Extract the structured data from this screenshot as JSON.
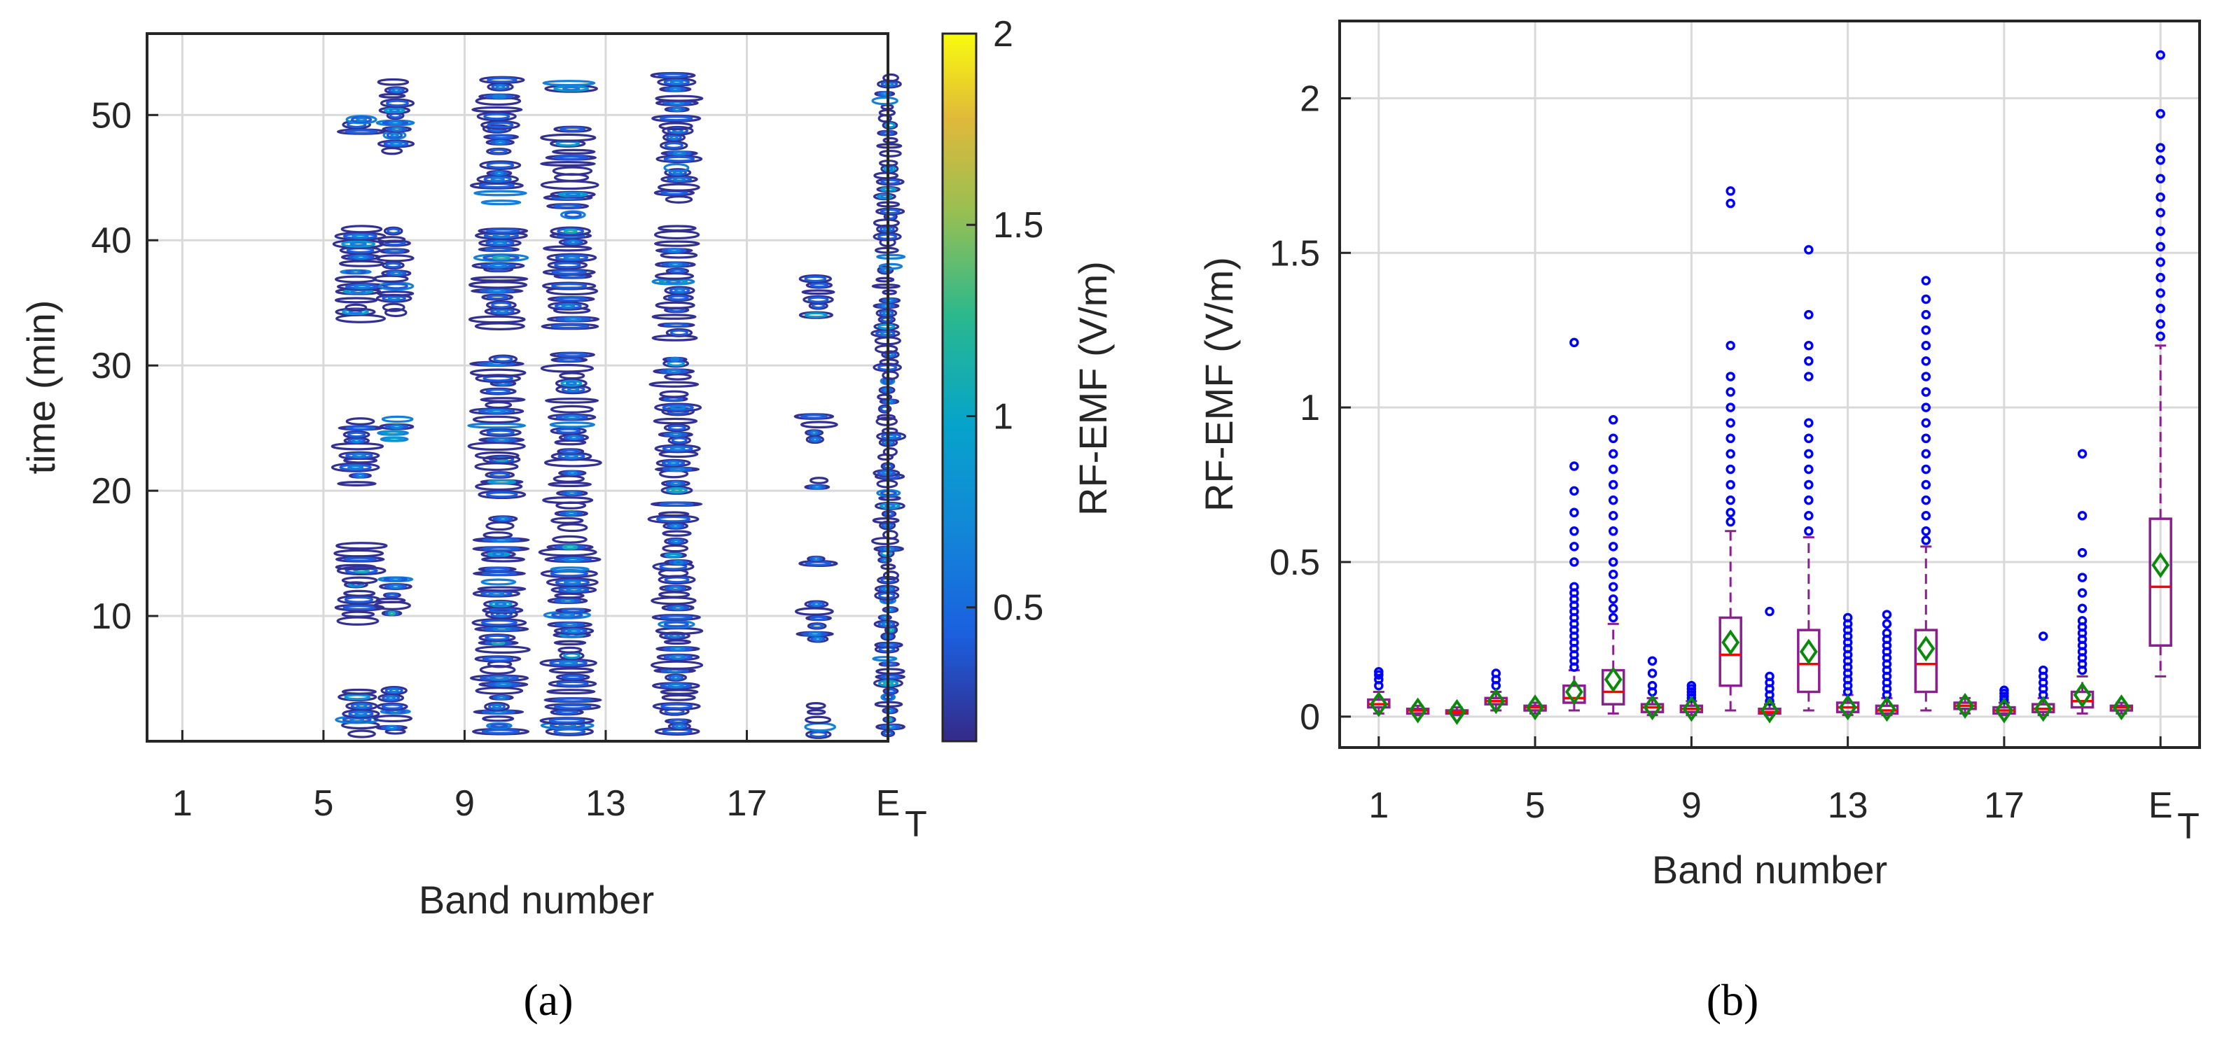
{
  "chart_data": [
    {
      "panel": "(a)",
      "type": "heatmap",
      "title": "",
      "xlabel": "Band number",
      "ylabel": "time (min)",
      "colorbar_label": "RF-EMF (V/m)",
      "xlim": [
        0,
        21
      ],
      "ylim": [
        0,
        56.5
      ],
      "clim": [
        0.15,
        2
      ],
      "x_ticks": [
        1,
        5,
        9,
        13,
        17,
        21
      ],
      "x_tick_labels": [
        "1",
        "5",
        "9",
        "13",
        "17",
        "E"
      ],
      "x_tick_subscript": "T",
      "y_ticks": [
        10,
        20,
        30,
        40,
        50
      ],
      "y_tick_labels": [
        "10",
        "20",
        "30",
        "40",
        "50"
      ],
      "colorbar_ticks": [
        0.5,
        1,
        1.5,
        2
      ],
      "colorbar_tick_labels": [
        "0.5",
        "1",
        "1.5",
        "2"
      ],
      "grid": true,
      "active_bands": [
        {
          "band": 6,
          "spread": 0.8,
          "segments": [
            [
              0.5,
              4
            ],
            [
              9.5,
              16
            ],
            [
              20.5,
              26
            ],
            [
              33.5,
              41
            ],
            [
              48.5,
              50
            ]
          ]
        },
        {
          "band": 7,
          "spread": 0.6,
          "segments": [
            [
              0.5,
              4
            ],
            [
              10,
              13
            ],
            [
              24,
              26
            ],
            [
              34,
              41
            ],
            [
              47,
              53
            ]
          ]
        },
        {
          "band": 10,
          "spread": 0.9,
          "segments": [
            [
              0.5,
              18
            ],
            [
              19.5,
              31
            ],
            [
              33,
              41
            ],
            [
              43,
              46
            ],
            [
              47,
              53
            ]
          ]
        },
        {
          "band": 12,
          "spread": 0.9,
          "segments": [
            [
              0.5,
              16
            ],
            [
              17,
              27
            ],
            [
              28,
              31
            ],
            [
              33,
              41
            ],
            [
              42,
              49
            ],
            [
              52,
              53
            ]
          ]
        },
        {
          "band": 15,
          "spread": 0.8,
          "segments": [
            [
              0.5,
              19
            ],
            [
              20,
              31
            ],
            [
              32,
              41
            ],
            [
              43,
              53
            ]
          ]
        },
        {
          "band": 19,
          "spread": 0.6,
          "segments": [
            [
              0.5,
              3
            ],
            [
              8,
              11
            ],
            [
              14,
              15
            ],
            [
              20,
              21
            ],
            [
              24,
              26
            ],
            [
              34,
              37
            ]
          ]
        },
        {
          "band": 21,
          "spread": 0.45,
          "segments": [
            [
              0.5,
              53
            ]
          ]
        }
      ]
    },
    {
      "panel": "(b)",
      "type": "box",
      "title": "",
      "xlabel": "Band number",
      "ylabel": "RF-EMF (V/m)",
      "xlim": [
        0,
        22
      ],
      "ylim": [
        -0.1,
        2.25
      ],
      "x_ticks": [
        1,
        5,
        9,
        13,
        17,
        21
      ],
      "x_tick_labels": [
        "1",
        "5",
        "9",
        "13",
        "17",
        "E"
      ],
      "x_tick_subscript": "T",
      "y_ticks": [
        0,
        0.5,
        1,
        1.5,
        2
      ],
      "y_tick_labels": [
        "0",
        "0.5",
        "1",
        "1.5",
        "2"
      ],
      "grid": true,
      "boxes": [
        {
          "band": 1,
          "q1": 0.03,
          "median": 0.04,
          "q3": 0.055,
          "wlo": 0.01,
          "whi": 0.08,
          "mean": 0.04,
          "outliers": [
            0.1,
            0.12,
            0.135,
            0.145
          ]
        },
        {
          "band": 2,
          "q1": 0.01,
          "median": 0.02,
          "q3": 0.025,
          "wlo": 0.005,
          "whi": 0.035,
          "mean": 0.02,
          "outliers": []
        },
        {
          "band": 3,
          "q1": 0.01,
          "median": 0.015,
          "q3": 0.02,
          "wlo": 0.005,
          "whi": 0.03,
          "mean": 0.015,
          "outliers": []
        },
        {
          "band": 4,
          "q1": 0.04,
          "median": 0.05,
          "q3": 0.06,
          "wlo": 0.02,
          "whi": 0.08,
          "mean": 0.05,
          "outliers": [
            0.1,
            0.12,
            0.14
          ]
        },
        {
          "band": 5,
          "q1": 0.02,
          "median": 0.03,
          "q3": 0.035,
          "wlo": 0.01,
          "whi": 0.045,
          "mean": 0.03,
          "outliers": []
        },
        {
          "band": 6,
          "q1": 0.045,
          "median": 0.06,
          "q3": 0.1,
          "wlo": 0.02,
          "whi": 0.15,
          "mean": 0.08,
          "outliers": [
            0.16,
            0.18,
            0.2,
            0.22,
            0.24,
            0.26,
            0.28,
            0.3,
            0.32,
            0.34,
            0.36,
            0.38,
            0.4,
            0.42,
            0.5,
            0.55,
            0.6,
            0.66,
            0.73,
            0.81,
            1.21
          ]
        },
        {
          "band": 7,
          "q1": 0.04,
          "median": 0.08,
          "q3": 0.15,
          "wlo": 0.01,
          "whi": 0.3,
          "mean": 0.12,
          "outliers": [
            0.32,
            0.35,
            0.38,
            0.42,
            0.46,
            0.5,
            0.55,
            0.6,
            0.65,
            0.7,
            0.75,
            0.8,
            0.85,
            0.9,
            0.96
          ]
        },
        {
          "band": 8,
          "q1": 0.015,
          "median": 0.03,
          "q3": 0.04,
          "wlo": 0.005,
          "whi": 0.06,
          "mean": 0.03,
          "outliers": [
            0.08,
            0.1,
            0.14,
            0.18
          ]
        },
        {
          "band": 9,
          "q1": 0.015,
          "median": 0.025,
          "q3": 0.035,
          "wlo": 0.005,
          "whi": 0.05,
          "mean": 0.025,
          "outliers": [
            0.06,
            0.07,
            0.08,
            0.09,
            0.1
          ]
        },
        {
          "band": 10,
          "q1": 0.1,
          "median": 0.2,
          "q3": 0.32,
          "wlo": 0.02,
          "whi": 0.6,
          "mean": 0.24,
          "outliers": [
            0.63,
            0.66,
            0.7,
            0.75,
            0.8,
            0.85,
            0.9,
            0.95,
            1.0,
            1.05,
            1.1,
            1.2,
            1.66,
            1.7
          ]
        },
        {
          "band": 11,
          "q1": 0.01,
          "median": 0.015,
          "q3": 0.025,
          "wlo": 0.005,
          "whi": 0.04,
          "mean": 0.02,
          "outliers": [
            0.05,
            0.07,
            0.09,
            0.11,
            0.13,
            0.34
          ]
        },
        {
          "band": 12,
          "q1": 0.08,
          "median": 0.17,
          "q3": 0.28,
          "wlo": 0.02,
          "whi": 0.58,
          "mean": 0.21,
          "outliers": [
            0.6,
            0.65,
            0.7,
            0.75,
            0.8,
            0.85,
            0.9,
            0.95,
            1.1,
            1.15,
            1.2,
            1.3,
            1.51
          ]
        },
        {
          "band": 13,
          "q1": 0.015,
          "median": 0.03,
          "q3": 0.045,
          "wlo": 0.005,
          "whi": 0.07,
          "mean": 0.03,
          "outliers": [
            0.08,
            0.1,
            0.12,
            0.14,
            0.16,
            0.18,
            0.2,
            0.22,
            0.24,
            0.26,
            0.28,
            0.3,
            0.32
          ]
        },
        {
          "band": 14,
          "q1": 0.01,
          "median": 0.02,
          "q3": 0.035,
          "wlo": 0.005,
          "whi": 0.06,
          "mean": 0.025,
          "outliers": [
            0.07,
            0.09,
            0.11,
            0.13,
            0.15,
            0.17,
            0.19,
            0.21,
            0.23,
            0.25,
            0.27,
            0.3,
            0.33
          ]
        },
        {
          "band": 15,
          "q1": 0.08,
          "median": 0.17,
          "q3": 0.28,
          "wlo": 0.02,
          "whi": 0.55,
          "mean": 0.22,
          "outliers": [
            0.57,
            0.6,
            0.65,
            0.7,
            0.75,
            0.8,
            0.85,
            0.9,
            0.95,
            1.0,
            1.05,
            1.1,
            1.15,
            1.2,
            1.25,
            1.3,
            1.35,
            1.41
          ]
        },
        {
          "band": 16,
          "q1": 0.025,
          "median": 0.035,
          "q3": 0.045,
          "wlo": 0.01,
          "whi": 0.06,
          "mean": 0.035,
          "outliers": []
        },
        {
          "band": 17,
          "q1": 0.01,
          "median": 0.02,
          "q3": 0.03,
          "wlo": 0.005,
          "whi": 0.045,
          "mean": 0.02,
          "outliers": [
            0.055,
            0.065,
            0.075,
            0.085
          ]
        },
        {
          "band": 18,
          "q1": 0.015,
          "median": 0.025,
          "q3": 0.04,
          "wlo": 0.005,
          "whi": 0.06,
          "mean": 0.025,
          "outliers": [
            0.07,
            0.09,
            0.11,
            0.13,
            0.15,
            0.26
          ]
        },
        {
          "band": 19,
          "q1": 0.03,
          "median": 0.05,
          "q3": 0.08,
          "wlo": 0.01,
          "whi": 0.13,
          "mean": 0.07,
          "outliers": [
            0.15,
            0.17,
            0.19,
            0.21,
            0.23,
            0.25,
            0.27,
            0.29,
            0.31,
            0.35,
            0.4,
            0.45,
            0.53,
            0.65,
            0.85
          ]
        },
        {
          "band": 20,
          "q1": 0.02,
          "median": 0.03,
          "q3": 0.035,
          "wlo": 0.01,
          "whi": 0.045,
          "mean": 0.03,
          "outliers": []
        },
        {
          "band": 21,
          "q1": 0.23,
          "median": 0.42,
          "q3": 0.64,
          "wlo": 0.13,
          "whi": 1.2,
          "mean": 0.49,
          "outliers": [
            1.23,
            1.27,
            1.32,
            1.37,
            1.42,
            1.47,
            1.52,
            1.57,
            1.63,
            1.68,
            1.74,
            1.8,
            1.84,
            1.95,
            2.14
          ]
        }
      ]
    }
  ],
  "panel_labels": {
    "a": "(a)",
    "b": "(b)"
  },
  "colors": {
    "box": "#8b1f8f",
    "median": "#ff0000",
    "mean_marker": "#0a8a0a",
    "outlier": "#0000ff",
    "grid": "#d9d9d9",
    "axis": "#262626"
  }
}
